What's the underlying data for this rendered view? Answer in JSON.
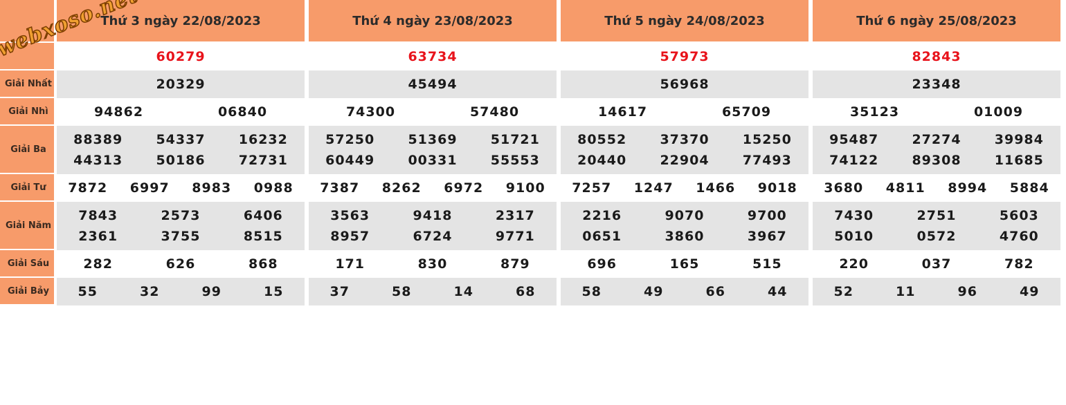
{
  "watermark": "webxoso.net",
  "labels": [
    "",
    "",
    "Giải Nhất",
    "Giải Nhì",
    "Giải Ba",
    "Giải Tư",
    "Giải Năm",
    "Giải Sáu",
    "Giải Bảy"
  ],
  "days": [
    {
      "title": "Thứ 3 ngày 22/08/2023",
      "special": "60279",
      "first": "20329",
      "second": [
        "94862",
        "06840"
      ],
      "third": [
        [
          "88389",
          "54337",
          "16232"
        ],
        [
          "44313",
          "50186",
          "72731"
        ]
      ],
      "fourth": [
        "7872",
        "6997",
        "8983",
        "0988"
      ],
      "fifth": [
        [
          "7843",
          "2573",
          "6406"
        ],
        [
          "2361",
          "3755",
          "8515"
        ]
      ],
      "sixth": [
        "282",
        "626",
        "868"
      ],
      "seventh": [
        "55",
        "32",
        "99",
        "15"
      ]
    },
    {
      "title": "Thứ 4 ngày 23/08/2023",
      "special": "63734",
      "first": "45494",
      "second": [
        "74300",
        "57480"
      ],
      "third": [
        [
          "57250",
          "51369",
          "51721"
        ],
        [
          "60449",
          "00331",
          "55553"
        ]
      ],
      "fourth": [
        "7387",
        "8262",
        "6972",
        "9100"
      ],
      "fifth": [
        [
          "3563",
          "9418",
          "2317"
        ],
        [
          "8957",
          "6724",
          "9771"
        ]
      ],
      "sixth": [
        "171",
        "830",
        "879"
      ],
      "seventh": [
        "37",
        "58",
        "14",
        "68"
      ]
    },
    {
      "title": "Thứ 5 ngày 24/08/2023",
      "special": "57973",
      "first": "56968",
      "second": [
        "14617",
        "65709"
      ],
      "third": [
        [
          "80552",
          "37370",
          "15250"
        ],
        [
          "20440",
          "22904",
          "77493"
        ]
      ],
      "fourth": [
        "7257",
        "1247",
        "1466",
        "9018"
      ],
      "fifth": [
        [
          "2216",
          "9070",
          "9700"
        ],
        [
          "0651",
          "3860",
          "3967"
        ]
      ],
      "sixth": [
        "696",
        "165",
        "515"
      ],
      "seventh": [
        "58",
        "49",
        "66",
        "44"
      ]
    },
    {
      "title": "Thứ 6 ngày 25/08/2023",
      "special": "82843",
      "first": "23348",
      "second": [
        "35123",
        "01009"
      ],
      "third": [
        [
          "95487",
          "27274",
          "39984"
        ],
        [
          "74122",
          "89308",
          "11685"
        ]
      ],
      "fourth": [
        "3680",
        "4811",
        "8994",
        "5884"
      ],
      "fifth": [
        [
          "7430",
          "2751",
          "5603"
        ],
        [
          "5010",
          "0572",
          "4760"
        ]
      ],
      "sixth": [
        "220",
        "037",
        "782"
      ],
      "seventh": [
        "52",
        "11",
        "96",
        "49"
      ]
    }
  ]
}
